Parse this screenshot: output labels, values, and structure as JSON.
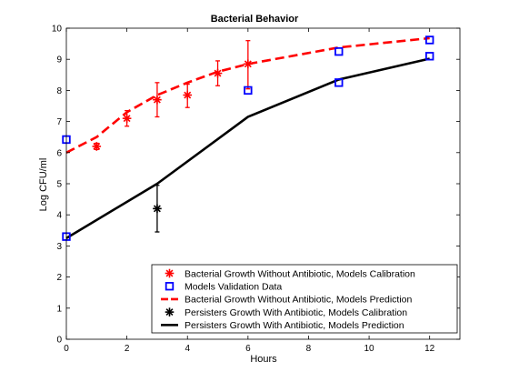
{
  "chart_data": {
    "type": "line",
    "title": "Bacterial Behavior",
    "xlabel": "Hours",
    "ylabel": "Log CFU/ml",
    "xlim": [
      0,
      13
    ],
    "ylim": [
      0,
      10
    ],
    "xticks": [
      0,
      2,
      4,
      6,
      8,
      10,
      12
    ],
    "yticks": [
      0,
      1,
      2,
      3,
      4,
      5,
      6,
      7,
      8,
      9,
      10
    ],
    "grid": false,
    "legend_position": "bottom-right",
    "series": [
      {
        "name": "Bacterial Growth Without Antibiotic, Models Calibration",
        "kind": "errorbar-marker",
        "marker": "asterisk",
        "color": "#ff0000",
        "points": [
          {
            "x": 1,
            "y": 6.2,
            "lo": 6.1,
            "hi": 6.3
          },
          {
            "x": 2,
            "y": 7.1,
            "lo": 6.85,
            "hi": 7.35
          },
          {
            "x": 3,
            "y": 7.7,
            "lo": 7.15,
            "hi": 8.25
          },
          {
            "x": 4,
            "y": 7.85,
            "lo": 7.45,
            "hi": 8.2
          },
          {
            "x": 5,
            "y": 8.55,
            "lo": 8.15,
            "hi": 8.95
          },
          {
            "x": 6,
            "y": 8.85,
            "lo": 8.05,
            "hi": 9.6
          }
        ]
      },
      {
        "name": "Models Validation Data",
        "kind": "marker",
        "marker": "square",
        "color": "#0000ff",
        "points": [
          {
            "x": 0,
            "y": 6.42
          },
          {
            "x": 0,
            "y": 3.3
          },
          {
            "x": 6,
            "y": 8.0
          },
          {
            "x": 9,
            "y": 9.25
          },
          {
            "x": 9,
            "y": 8.25
          },
          {
            "x": 12,
            "y": 9.62
          },
          {
            "x": 12,
            "y": 9.1
          }
        ]
      },
      {
        "name": "Bacterial Growth Without Antibiotic, Models Prediction",
        "kind": "line",
        "style": "dashed",
        "color": "#ff0000",
        "points": [
          {
            "x": 0,
            "y": 6.0
          },
          {
            "x": 1,
            "y": 6.5
          },
          {
            "x": 2,
            "y": 7.3
          },
          {
            "x": 3,
            "y": 7.85
          },
          {
            "x": 4,
            "y": 8.25
          },
          {
            "x": 5,
            "y": 8.6
          },
          {
            "x": 6,
            "y": 8.85
          },
          {
            "x": 9,
            "y": 9.38
          },
          {
            "x": 12,
            "y": 9.68
          }
        ]
      },
      {
        "name": "Persisters Growth With Antibiotic, Models Calibration",
        "kind": "errorbar-marker",
        "marker": "asterisk",
        "color": "#000000",
        "points": [
          {
            "x": 3,
            "y": 4.2,
            "lo": 3.45,
            "hi": 4.95
          }
        ]
      },
      {
        "name": "Persisters Growth With Antibiotic, Models Prediction",
        "kind": "line",
        "style": "solid",
        "color": "#000000",
        "points": [
          {
            "x": 0,
            "y": 3.25
          },
          {
            "x": 3,
            "y": 5.0
          },
          {
            "x": 6,
            "y": 7.15
          },
          {
            "x": 9,
            "y": 8.35
          },
          {
            "x": 12,
            "y": 9.02
          }
        ]
      }
    ]
  }
}
